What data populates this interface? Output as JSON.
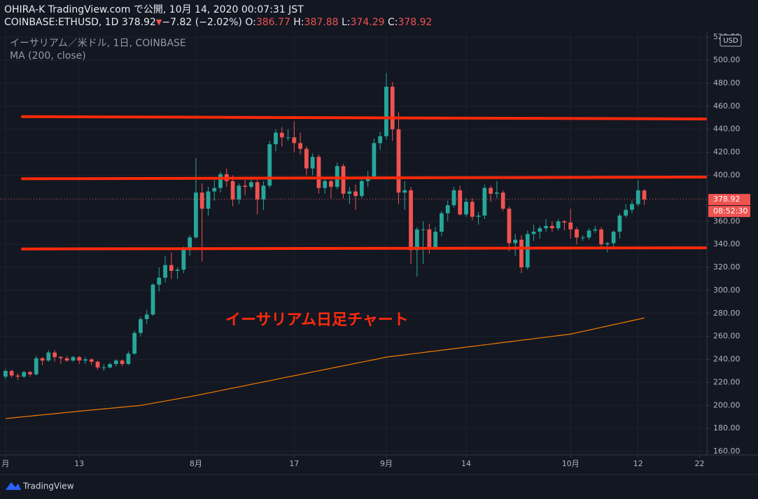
{
  "chart_data": {
    "type": "candlestick",
    "title": "OHIRA-K TradingView.com で公開, 10月 14, 2020 00:07:31 JST",
    "symbol": "COINBASE:ETHUSD, 1D",
    "change_arrow": "▼",
    "change": "−7.82 (−2.02%)",
    "ohlc_labels": [
      "O:",
      "H:",
      "L:",
      "C:"
    ],
    "legend": "イーサリアム／米ドル, 1日, COINBASE",
    "annotation": "イーサリアム日足チャート",
    "countdown": "08:52:30",
    "currency": "USD",
    "up_color": "#26a69a",
    "down_color": "#ef5350",
    "grid": true,
    "xlim": [
      -0.9,
      114.2
    ],
    "xticks": [
      {
        "value": 0,
        "label": "月"
      },
      {
        "value": 12,
        "label": "13"
      },
      {
        "value": 31,
        "label": "8月"
      },
      {
        "value": 47,
        "label": "17"
      },
      {
        "value": 62,
        "label": "9月"
      },
      {
        "value": 75,
        "label": "14"
      },
      {
        "value": 92,
        "label": "10月"
      },
      {
        "value": 103,
        "label": "12"
      },
      {
        "value": 113,
        "label": "22"
      }
    ],
    "ylim": [
      157,
      525
    ],
    "yticks": [
      {
        "value": 160,
        "label": "160.00"
      },
      {
        "value": 180,
        "label": "180.00"
      },
      {
        "value": 200,
        "label": "200.00"
      },
      {
        "value": 220,
        "label": "220.00"
      },
      {
        "value": 240,
        "label": "240.00"
      },
      {
        "value": 260,
        "label": "260.00"
      },
      {
        "value": 280,
        "label": "280.00"
      },
      {
        "value": 300,
        "label": "300.00"
      },
      {
        "value": 320,
        "label": "320.00"
      },
      {
        "value": 340,
        "label": "340.00"
      },
      {
        "value": 360,
        "label": "360.00"
      },
      {
        "value": 380,
        "label": "380.00"
      },
      {
        "value": 400,
        "label": "400.00"
      },
      {
        "value": 420,
        "label": "420.00"
      },
      {
        "value": 440,
        "label": "440.00"
      },
      {
        "value": 460,
        "label": "460.00"
      },
      {
        "value": 480,
        "label": "480.00"
      },
      {
        "value": 500,
        "label": "500.00"
      },
      {
        "value": 520,
        "label": "520.00"
      }
    ],
    "x": [
      0,
      1,
      2,
      3,
      4,
      5,
      6,
      7,
      8,
      9,
      10,
      11,
      12,
      13,
      14,
      15,
      16,
      17,
      18,
      19,
      20,
      21,
      22,
      23,
      24,
      25,
      26,
      27,
      28,
      29,
      30,
      31,
      32,
      33,
      34,
      35,
      36,
      37,
      38,
      39,
      40,
      41,
      42,
      43,
      44,
      45,
      46,
      47,
      48,
      49,
      50,
      51,
      52,
      53,
      54,
      55,
      56,
      57,
      58,
      59,
      60,
      61,
      62,
      63,
      64,
      65,
      66,
      67,
      68,
      69,
      70,
      71,
      72,
      73,
      74,
      75,
      76,
      77,
      78,
      79,
      80,
      81,
      82,
      83,
      84,
      85,
      86,
      87,
      88,
      89,
      90,
      91,
      92,
      93,
      94,
      95,
      96,
      97,
      98,
      99,
      100,
      101,
      102,
      103,
      104
    ],
    "ohlc": [
      [
        225,
        232,
        223,
        230
      ],
      [
        230,
        231,
        224,
        226
      ],
      [
        226,
        228,
        222,
        225
      ],
      [
        225,
        230,
        224,
        229
      ],
      [
        229,
        230,
        225,
        227
      ],
      [
        227,
        243,
        226,
        241
      ],
      [
        241,
        242,
        235,
        239
      ],
      [
        239,
        248,
        238,
        246
      ],
      [
        246,
        248,
        238,
        242
      ],
      [
        242,
        243,
        236,
        241
      ],
      [
        241,
        243,
        238,
        239
      ],
      [
        239,
        243,
        238,
        242
      ],
      [
        242,
        243,
        236,
        239
      ],
      [
        239,
        242,
        236,
        240
      ],
      [
        240,
        241,
        235,
        238
      ],
      [
        238,
        239,
        231,
        233
      ],
      [
        233,
        236,
        230,
        233
      ],
      [
        233,
        237,
        232,
        236
      ],
      [
        236,
        240,
        234,
        239
      ],
      [
        239,
        240,
        234,
        236
      ],
      [
        236,
        247,
        235,
        245
      ],
      [
        245,
        265,
        244,
        263
      ],
      [
        263,
        277,
        260,
        275
      ],
      [
        275,
        283,
        271,
        279
      ],
      [
        279,
        306,
        278,
        305
      ],
      [
        305,
        320,
        299,
        311
      ],
      [
        311,
        330,
        307,
        322
      ],
      [
        322,
        333,
        310,
        317
      ],
      [
        317,
        320,
        310,
        318
      ],
      [
        318,
        338,
        315,
        335
      ],
      [
        335,
        348,
        330,
        346
      ],
      [
        346,
        415,
        345,
        385
      ],
      [
        385,
        393,
        325,
        371
      ],
      [
        371,
        390,
        365,
        386
      ],
      [
        386,
        396,
        378,
        389
      ],
      [
        389,
        403,
        385,
        401
      ],
      [
        401,
        406,
        390,
        395
      ],
      [
        395,
        400,
        373,
        379
      ],
      [
        379,
        393,
        375,
        391
      ],
      [
        391,
        396,
        383,
        390
      ],
      [
        390,
        399,
        388,
        394
      ],
      [
        394,
        397,
        366,
        379
      ],
      [
        379,
        395,
        370,
        391
      ],
      [
        391,
        430,
        389,
        427
      ],
      [
        427,
        440,
        421,
        437
      ],
      [
        437,
        442,
        425,
        433
      ],
      [
        433,
        440,
        430,
        433
      ],
      [
        433,
        447,
        420,
        428
      ],
      [
        428,
        437,
        418,
        423
      ],
      [
        423,
        425,
        400,
        406
      ],
      [
        406,
        419,
        400,
        416
      ],
      [
        416,
        418,
        384,
        389
      ],
      [
        389,
        397,
        384,
        395
      ],
      [
        395,
        396,
        380,
        390
      ],
      [
        390,
        411,
        388,
        408
      ],
      [
        408,
        410,
        380,
        384
      ],
      [
        384,
        390,
        375,
        386
      ],
      [
        386,
        392,
        370,
        382
      ],
      [
        382,
        397,
        380,
        395
      ],
      [
        395,
        404,
        390,
        399
      ],
      [
        399,
        432,
        397,
        428
      ],
      [
        428,
        438,
        422,
        434
      ],
      [
        434,
        489,
        431,
        477
      ],
      [
        477,
        481,
        430,
        440
      ],
      [
        440,
        455,
        375,
        385
      ],
      [
        385,
        395,
        370,
        387
      ],
      [
        387,
        390,
        323,
        335
      ],
      [
        335,
        355,
        312,
        353
      ],
      [
        353,
        360,
        323,
        353
      ],
      [
        353,
        358,
        332,
        337
      ],
      [
        337,
        355,
        335,
        351
      ],
      [
        351,
        369,
        347,
        367
      ],
      [
        367,
        378,
        360,
        374
      ],
      [
        374,
        390,
        372,
        387
      ],
      [
        387,
        391,
        365,
        366
      ],
      [
        366,
        380,
        364,
        377
      ],
      [
        377,
        380,
        361,
        364
      ],
      [
        364,
        368,
        357,
        365
      ],
      [
        365,
        392,
        362,
        389
      ],
      [
        389,
        391,
        377,
        384
      ],
      [
        384,
        395,
        380,
        385
      ],
      [
        385,
        387,
        369,
        371
      ],
      [
        371,
        373,
        334,
        341
      ],
      [
        341,
        349,
        330,
        344
      ],
      [
        344,
        348,
        315,
        320
      ],
      [
        320,
        352,
        318,
        349
      ],
      [
        349,
        357,
        343,
        351
      ],
      [
        351,
        356,
        345,
        354
      ],
      [
        354,
        362,
        351,
        356
      ],
      [
        356,
        360,
        351,
        354
      ],
      [
        354,
        362,
        352,
        360
      ],
      [
        360,
        361,
        352,
        359
      ],
      [
        359,
        371,
        345,
        353
      ],
      [
        353,
        355,
        340,
        346
      ],
      [
        346,
        348,
        343,
        346
      ],
      [
        346,
        354,
        344,
        352
      ],
      [
        352,
        356,
        350,
        353
      ],
      [
        353,
        355,
        338,
        340
      ],
      [
        340,
        342,
        333,
        341
      ],
      [
        341,
        352,
        338,
        351
      ],
      [
        351,
        367,
        345,
        365
      ],
      [
        365,
        375,
        363,
        370
      ],
      [
        370,
        378,
        367,
        375
      ],
      [
        375,
        396,
        373,
        387
      ],
      [
        386.77,
        387.88,
        374.29,
        378.92
      ]
    ],
    "ma": {
      "name": "MA (200, close)",
      "color": "#f57c00",
      "values": [
        188.6,
        189.1,
        189.7,
        190.2,
        190.7,
        191.3,
        191.8,
        192.3,
        192.8,
        193.4,
        193.9,
        194.4,
        195.0,
        195.5,
        196.0,
        196.5,
        197.0,
        197.5,
        198.0,
        198.5,
        199.0,
        199.5,
        200.0,
        201.0,
        201.9,
        202.9,
        203.8,
        204.8,
        205.7,
        206.7,
        207.6,
        208.6,
        209.7,
        210.8,
        211.8,
        212.9,
        214.0,
        215.1,
        216.1,
        217.2,
        218.3,
        219.4,
        220.4,
        221.5,
        222.6,
        223.7,
        224.8,
        225.8,
        226.9,
        228.0,
        229.1,
        230.1,
        231.2,
        232.3,
        233.4,
        234.4,
        235.5,
        236.6,
        237.7,
        238.7,
        239.8,
        240.9,
        242.0,
        242.7,
        243.3,
        244.0,
        244.7,
        245.3,
        246.0,
        246.7,
        247.3,
        248.0,
        248.7,
        249.3,
        250.0,
        250.7,
        251.3,
        252.0,
        252.7,
        253.3,
        254.0,
        254.7,
        255.3,
        256.0,
        256.7,
        257.3,
        258.0,
        258.7,
        259.3,
        260.0,
        260.7,
        261.3,
        262.0,
        263.2,
        264.3,
        265.5,
        266.7,
        267.8,
        269.0,
        270.2,
        271.3,
        272.5,
        273.7,
        274.8,
        276.0
      ]
    },
    "level_color": "#ff2a0a",
    "levels": [
      {
        "from": 451,
        "to": 449
      },
      {
        "from": 397,
        "to": 398.5
      },
      {
        "from": 336,
        "to": 337
      }
    ]
  },
  "footer": {
    "brand": "TradingView"
  }
}
